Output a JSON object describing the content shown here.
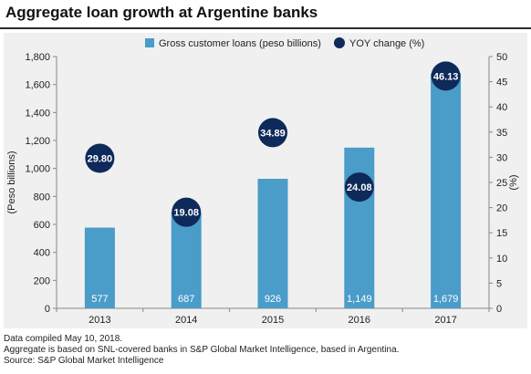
{
  "title": "Aggregate loan growth at Argentine banks",
  "notes": [
    "Data compiled May 10, 2018.",
    "Aggregate is based on SNL-covered banks in S&P Global Market Intelligence, based in Argentina.",
    "Source: S&P Global Market Intelligence"
  ],
  "colors": {
    "bar": "#4a9cc9",
    "marker": "#0e2a5a",
    "background": "#f0f0f0"
  },
  "chart_data": {
    "type": "bar",
    "categories": [
      "2013",
      "2014",
      "2015",
      "2016",
      "2017"
    ],
    "series": [
      {
        "name": "Gross customer loans (peso billions)",
        "kind": "bar",
        "axis": "left",
        "values": [
          577,
          687,
          926,
          1149,
          1679
        ],
        "labels": [
          "577",
          "687",
          "926",
          "1,149",
          "1,679"
        ]
      },
      {
        "name": "YOY change (%)",
        "kind": "marker",
        "axis": "right",
        "values": [
          29.8,
          19.08,
          34.89,
          24.08,
          46.13
        ],
        "labels": [
          "29.80",
          "19.08",
          "34.89",
          "24.08",
          "46.13"
        ]
      }
    ],
    "ylabel": "(Peso billions)",
    "y2label": "(%)",
    "ylim": [
      0,
      1800
    ],
    "y2lim": [
      0,
      50
    ],
    "yticks": [
      "0",
      "200",
      "400",
      "600",
      "800",
      "1,000",
      "1,200",
      "1,400",
      "1,600",
      "1,800"
    ],
    "y2ticks": [
      "0",
      "5",
      "10",
      "15",
      "20",
      "25",
      "30",
      "35",
      "40",
      "45",
      "50"
    ],
    "legend_position": "top",
    "grid": false
  }
}
